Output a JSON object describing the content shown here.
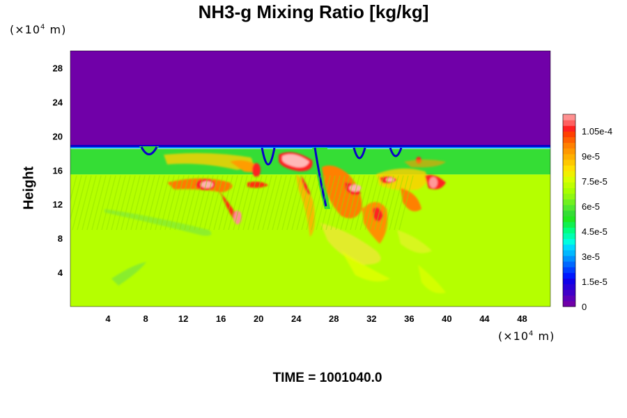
{
  "chart_data": {
    "type": "heatmap",
    "title": "NH3-g Mixing Ratio [kg/kg]",
    "xlabel": "",
    "ylabel": "Height",
    "x_unit": "(×10",
    "x_unit_exp": "4",
    "x_unit_suffix": " m)",
    "y_unit": "(×10",
    "y_unit_exp": "4",
    "y_unit_suffix": " m)",
    "xlim": [
      0,
      51
    ],
    "ylim": [
      0,
      30
    ],
    "x_ticks": [
      4,
      8,
      12,
      16,
      20,
      24,
      28,
      32,
      36,
      40,
      44,
      48
    ],
    "y_ticks": [
      4,
      8,
      12,
      16,
      20,
      24,
      28
    ],
    "colorbar": {
      "range": [
        0,
        0.000115
      ],
      "tick_labels": [
        "1.05e-4",
        "9e-5",
        "7.5e-5",
        "6e-5",
        "4.5e-5",
        "3e-5",
        "1.5e-5",
        "0"
      ],
      "tick_values": [
        0.000105,
        9e-05,
        7.5e-05,
        6e-05,
        4.5e-05,
        3e-05,
        1.5e-05,
        0
      ]
    },
    "field": {
      "upper_value": 0,
      "upper_color": "#7000a8",
      "band_value": 6.3e-05,
      "band_color": "#35dd35",
      "lower_value": 7.8e-05,
      "lower_color": "#b5ff00",
      "band_top_height": 18.5,
      "band_bottom_height": 15.5
    },
    "footer": "TIME = 1001040.0"
  }
}
